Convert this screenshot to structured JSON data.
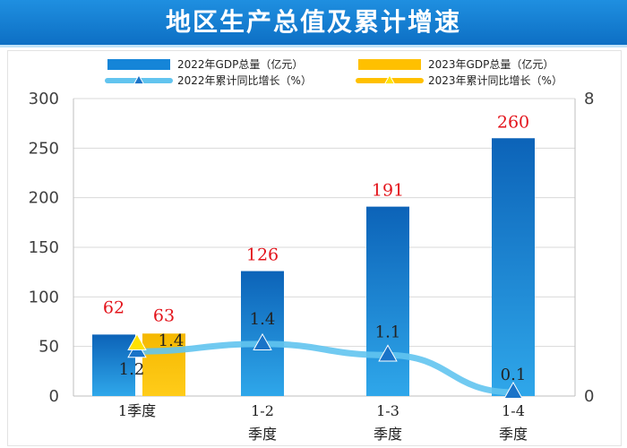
{
  "header": {
    "title": "地区生产总值及累计增速"
  },
  "chart_data": {
    "type": "bar",
    "title": "地区生产总值及累计增速",
    "categories": [
      [
        "1季度"
      ],
      [
        "1-2",
        "季度"
      ],
      [
        "1-3",
        "季度"
      ],
      [
        "1-4",
        "季度"
      ]
    ],
    "series": [
      {
        "name": "2022年GDP总量（亿元）",
        "kind": "bar",
        "axis": "left",
        "values": [
          62,
          126,
          191,
          260
        ],
        "color": "#1585d8",
        "labels": [
          "62",
          "126",
          "191",
          "260"
        ]
      },
      {
        "name": "2023年GDP总量（亿元）",
        "kind": "bar",
        "axis": "left",
        "values": [
          63,
          null,
          null,
          null
        ],
        "color": "#ffc000",
        "labels": [
          "63"
        ]
      },
      {
        "name": "2022年累计同比增长（%）",
        "kind": "line",
        "axis": "right",
        "values": [
          1.2,
          1.4,
          1.1,
          0.1
        ],
        "color": "#62c4ef",
        "marker_color": "#1a73c8",
        "labels": [
          "1.2",
          "1.4",
          "1.1",
          "0.1"
        ]
      },
      {
        "name": "2023年累计同比增长（%）",
        "kind": "line",
        "axis": "right",
        "values": [
          1.4,
          null,
          null,
          null
        ],
        "color": "#ffc000",
        "marker_color": "#ffe200",
        "labels": [
          "1.4"
        ]
      }
    ],
    "y_left": {
      "min": 0,
      "max": 300,
      "ticks": [
        "0",
        "50",
        "100",
        "150",
        "200",
        "250",
        "300"
      ]
    },
    "y_right": {
      "min": 0,
      "max": 8,
      "ticks": [
        "0",
        "8"
      ]
    },
    "legend": {
      "position": "top"
    }
  }
}
